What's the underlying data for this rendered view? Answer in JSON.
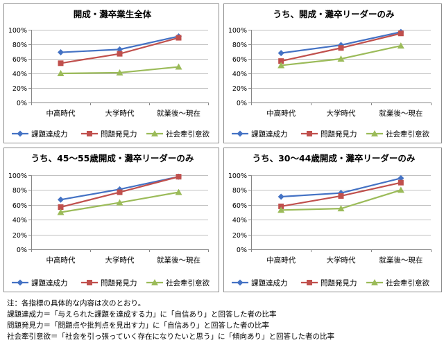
{
  "legend": [
    {
      "name": "課題達成力",
      "color": "#4472c4",
      "marker": "diamond"
    },
    {
      "name": "問題発見力",
      "color": "#c0504d",
      "marker": "square"
    },
    {
      "name": "社会牽引意欲",
      "color": "#9bbb59",
      "marker": "triangle"
    }
  ],
  "chart_data": [
    {
      "type": "line",
      "title": "開成・灘卒業生全体",
      "categories": [
        "中高時代",
        "大学時代",
        "就業後～現在"
      ],
      "y_ticks": [
        "0%",
        "20%",
        "40%",
        "60%",
        "80%",
        "100%"
      ],
      "ylim": [
        0,
        100
      ],
      "grid": true,
      "legend_position": "bottom",
      "series": [
        {
          "name": "課題達成力",
          "values": [
            69,
            73,
            91
          ]
        },
        {
          "name": "問題発見力",
          "values": [
            54,
            67,
            89
          ]
        },
        {
          "name": "社会牽引意欲",
          "values": [
            40,
            41,
            49
          ]
        }
      ]
    },
    {
      "type": "line",
      "title": "うち、開成・灘卒リーダーのみ",
      "categories": [
        "中高時代",
        "大学時代",
        "就業後～現在"
      ],
      "y_ticks": [
        "0%",
        "20%",
        "40%",
        "60%",
        "80%",
        "100%"
      ],
      "ylim": [
        0,
        100
      ],
      "grid": true,
      "legend_position": "bottom",
      "series": [
        {
          "name": "課題達成力",
          "values": [
            68,
            79,
            97
          ]
        },
        {
          "name": "問題発見力",
          "values": [
            57,
            75,
            95
          ]
        },
        {
          "name": "社会牽引意欲",
          "values": [
            51,
            60,
            78
          ]
        }
      ]
    },
    {
      "type": "line",
      "title": "うち、45～55歳開成・灘卒リーダーのみ",
      "categories": [
        "中高時代",
        "大学時代",
        "就業後～現在"
      ],
      "y_ticks": [
        "0%",
        "20%",
        "40%",
        "60%",
        "80%",
        "100%"
      ],
      "ylim": [
        0,
        100
      ],
      "grid": true,
      "legend_position": "bottom",
      "series": [
        {
          "name": "課題達成力",
          "values": [
            67,
            81,
            98
          ]
        },
        {
          "name": "問題発見力",
          "values": [
            57,
            77,
            98
          ]
        },
        {
          "name": "社会牽引意欲",
          "values": [
            50,
            63,
            77
          ]
        }
      ]
    },
    {
      "type": "line",
      "title": "うち、30～44歳開成・灘卒リーダーのみ",
      "categories": [
        "中高時代",
        "大学時代",
        "就業後～現在"
      ],
      "y_ticks": [
        "0%",
        "20%",
        "40%",
        "60%",
        "80%",
        "100%"
      ],
      "ylim": [
        0,
        100
      ],
      "grid": true,
      "legend_position": "bottom",
      "series": [
        {
          "name": "課題達成力",
          "values": [
            71,
            76,
            96
          ]
        },
        {
          "name": "問題発見力",
          "values": [
            58,
            72,
            90
          ]
        },
        {
          "name": "社会牽引意欲",
          "values": [
            53,
            55,
            80
          ]
        }
      ]
    }
  ],
  "notes": [
    "注：各指標の具体的な内容は次のとおり。",
    "課題達成力＝「与えられた課題を達成する力」に「自信あり」と回答した者の比率",
    "問題発見力＝「問題点や批判点を見出す力」に「自信あり」と回答した者の比率",
    "社会牽引意欲＝「社会を引っ張っていく存在になりたいと思う」に「傾向あり」と回答した者の比率"
  ]
}
